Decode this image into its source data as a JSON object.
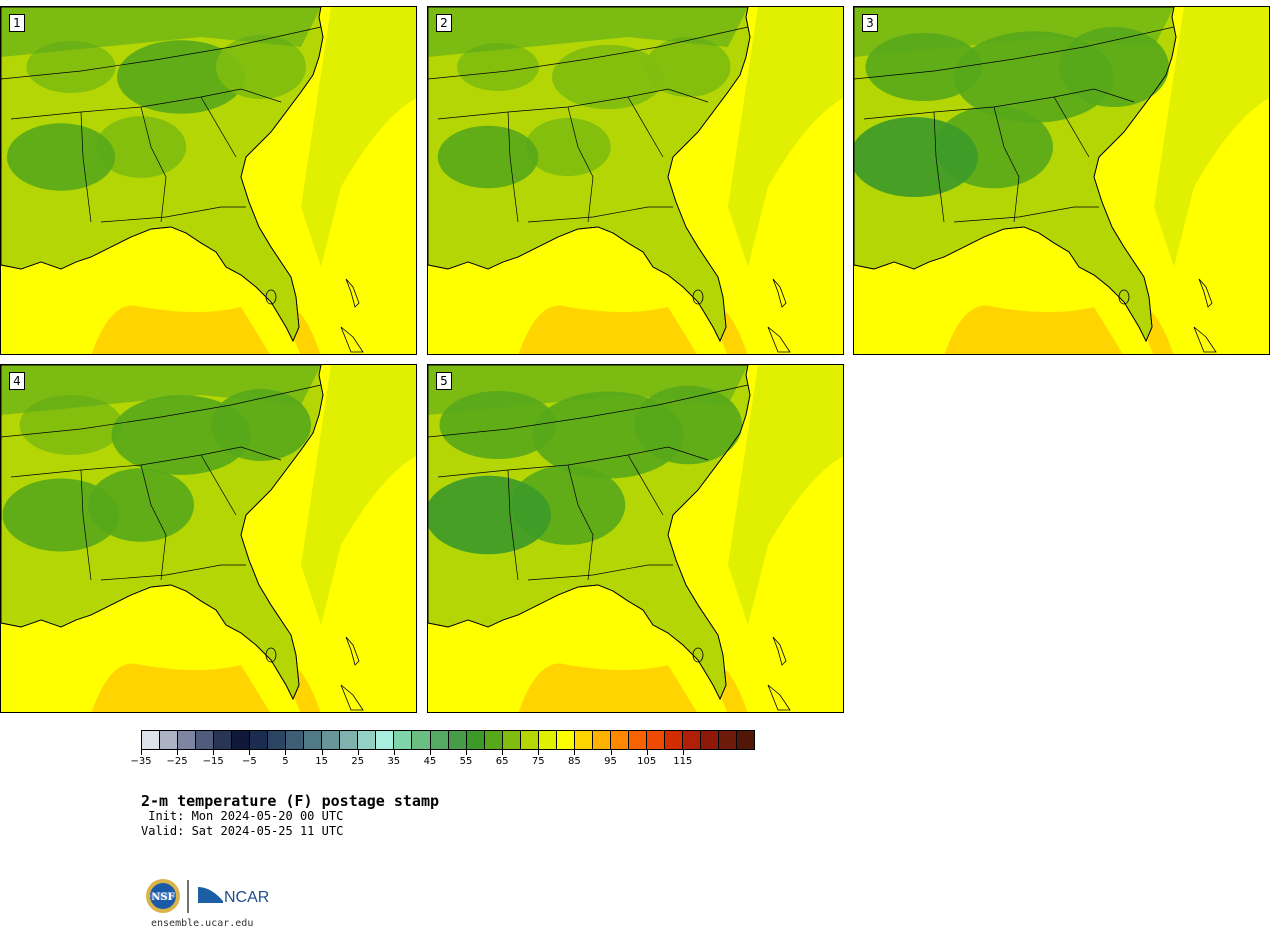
{
  "figure": {
    "title": "2-m temperature (F) postage stamp",
    "init_text": " Init: Mon 2024-05-20 00 UTC",
    "valid_text": "Valid: Sat 2024-05-25 11 UTC",
    "website": "ensemble.ucar.edu",
    "logo_text": "NCAR",
    "logo_alt": "NSF"
  },
  "panels": [
    {
      "label": "1",
      "profile": [
        0.35,
        0.55,
        0.42,
        0.62,
        0.5
      ]
    },
    {
      "label": "2",
      "profile": [
        0.3,
        0.45,
        0.38,
        0.55,
        0.45
      ]
    },
    {
      "label": "3",
      "profile": [
        0.55,
        0.75,
        0.65,
        0.8,
        0.7
      ]
    },
    {
      "label": "4",
      "profile": [
        0.45,
        0.62,
        0.55,
        0.7,
        0.6
      ]
    },
    {
      "label": "5",
      "profile": [
        0.55,
        0.7,
        0.62,
        0.78,
        0.68
      ]
    }
  ],
  "colorbar": {
    "ticks": [
      "−35",
      "−25",
      "−15",
      "−5",
      "5",
      "15",
      "25",
      "35",
      "45",
      "55",
      "65",
      "75",
      "85",
      "95",
      "105",
      "115"
    ],
    "colors": [
      "#dde2ea",
      "#adb3c5",
      "#7d85a1",
      "#515b7c",
      "#293554",
      "#10183a",
      "#1c2c50",
      "#2b4563",
      "#3e5e75",
      "#517a87",
      "#679599",
      "#7fb1ad",
      "#95d0c4",
      "#a8efde",
      "#7fd5aa",
      "#6bbe82",
      "#56aa64",
      "#479d47",
      "#3b9a29",
      "#56a91b",
      "#80bd10",
      "#b3d604",
      "#e0f000",
      "#ffff00",
      "#ffd400",
      "#ffb000",
      "#ff8800",
      "#f76300",
      "#ec4b00",
      "#d12d00",
      "#b01f08",
      "#8f1909",
      "#6e1a0b",
      "#521608"
    ]
  }
}
